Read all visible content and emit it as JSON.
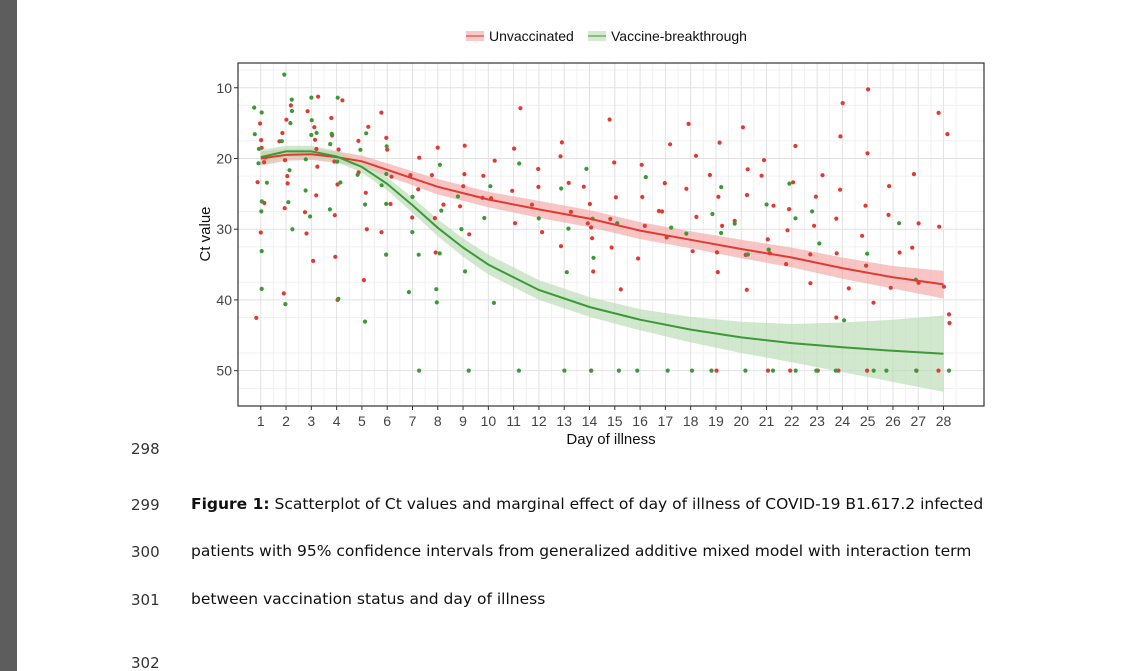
{
  "line_numbers": [
    "298",
    "299",
    "300",
    "301",
    "302"
  ],
  "caption": {
    "label": "Figure 1:",
    "line1": " Scatterplot of Ct values and marginal effect of day of illness of COVID-19 B1.617.2 infected",
    "line2": "patients with 95% confidence intervals from generalized additive mixed model with interaction term",
    "line3": "between vaccination status and day of illness"
  },
  "chart_data": {
    "type": "scatter",
    "title": "",
    "xlabel": "Day of illness",
    "ylabel": "Ct value",
    "x_ticks": [
      1,
      2,
      3,
      4,
      5,
      6,
      7,
      8,
      9,
      10,
      11,
      12,
      13,
      14,
      15,
      16,
      17,
      18,
      19,
      20,
      21,
      22,
      23,
      24,
      25,
      26,
      27,
      28
    ],
    "y_ticks": [
      10,
      20,
      30,
      40,
      50
    ],
    "xlim": [
      0.1,
      29.6
    ],
    "ylim": [
      55,
      6.5
    ],
    "y_axis_inverted": true,
    "grid": true,
    "legend_position": "top",
    "series": [
      {
        "name": "Unvaccinated",
        "color": "#e23a32",
        "band_color": "#f2a7a5",
        "fit": {
          "x": [
            1,
            2,
            3,
            4,
            5,
            6,
            7,
            8,
            10,
            12,
            14,
            16,
            18,
            20,
            22,
            24,
            26,
            28
          ],
          "y": [
            20,
            19.5,
            19.4,
            19.8,
            20.4,
            21.6,
            22.8,
            24,
            25.8,
            27.2,
            28.5,
            30.2,
            31.5,
            32.8,
            34,
            35.5,
            36.8,
            37.8
          ],
          "lower": [
            19,
            18.7,
            18.6,
            19,
            19.6,
            20.7,
            21.8,
            22.9,
            24.7,
            26,
            27.3,
            29,
            30.3,
            31.5,
            32.6,
            34,
            35.2,
            35.9
          ],
          "upper": [
            21,
            20.3,
            20.2,
            20.6,
            21.2,
            22.5,
            23.8,
            25.1,
            26.9,
            28.4,
            29.7,
            31.4,
            32.7,
            34.1,
            35.4,
            37,
            38.4,
            39.8
          ]
        },
        "points": [
          [
            1,
            43
          ],
          [
            1,
            21
          ],
          [
            1,
            18
          ],
          [
            1,
            15
          ],
          [
            1,
            23
          ],
          [
            1,
            20
          ],
          [
            1,
            26
          ],
          [
            1,
            31
          ],
          [
            1,
            17
          ],
          [
            2,
            14
          ],
          [
            2,
            18
          ],
          [
            2,
            22
          ],
          [
            2,
            24
          ],
          [
            2,
            27
          ],
          [
            2,
            12
          ],
          [
            2,
            39
          ],
          [
            2,
            20
          ],
          [
            2,
            16
          ],
          [
            3,
            11
          ],
          [
            3,
            15
          ],
          [
            3,
            19
          ],
          [
            3,
            25
          ],
          [
            3,
            28
          ],
          [
            3,
            35
          ],
          [
            3,
            21
          ],
          [
            3,
            13
          ],
          [
            3,
            17
          ],
          [
            3,
            31
          ],
          [
            4,
            12
          ],
          [
            4,
            17
          ],
          [
            4,
            21
          ],
          [
            4,
            24
          ],
          [
            4,
            28
          ],
          [
            4,
            34
          ],
          [
            4,
            40
          ],
          [
            4,
            14
          ],
          [
            4,
            19
          ],
          [
            5,
            15
          ],
          [
            5,
            18
          ],
          [
            5,
            22
          ],
          [
            5,
            25
          ],
          [
            5,
            30
          ],
          [
            5,
            37
          ],
          [
            6,
            14
          ],
          [
            6,
            19
          ],
          [
            6,
            23
          ],
          [
            6,
            27
          ],
          [
            6,
            31
          ],
          [
            6,
            17
          ],
          [
            7,
            20
          ],
          [
            7,
            24
          ],
          [
            7,
            28
          ],
          [
            7,
            22
          ],
          [
            8,
            19
          ],
          [
            8,
            22
          ],
          [
            8,
            26
          ],
          [
            8,
            29
          ],
          [
            8,
            33
          ],
          [
            9,
            18
          ],
          [
            9,
            22
          ],
          [
            9,
            24
          ],
          [
            9,
            27
          ],
          [
            9,
            31
          ],
          [
            10,
            20
          ],
          [
            10,
            23
          ],
          [
            10,
            26
          ],
          [
            10,
            25
          ],
          [
            11,
            13
          ],
          [
            11,
            19
          ],
          [
            11,
            24
          ],
          [
            11,
            29
          ],
          [
            12,
            21
          ],
          [
            12,
            24
          ],
          [
            12,
            27
          ],
          [
            12,
            30
          ],
          [
            13,
            18
          ],
          [
            13,
            20
          ],
          [
            13,
            24
          ],
          [
            13,
            28
          ],
          [
            13,
            33
          ],
          [
            14,
            24
          ],
          [
            14,
            27
          ],
          [
            14,
            29
          ],
          [
            14,
            31
          ],
          [
            14,
            36
          ],
          [
            14,
            50
          ],
          [
            14,
            30
          ],
          [
            15,
            15
          ],
          [
            15,
            20
          ],
          [
            15,
            25
          ],
          [
            15,
            28
          ],
          [
            15,
            32
          ],
          [
            15,
            38
          ],
          [
            16,
            21
          ],
          [
            16,
            26
          ],
          [
            16,
            30
          ],
          [
            16,
            34
          ],
          [
            17,
            18
          ],
          [
            17,
            24
          ],
          [
            17,
            27
          ],
          [
            17,
            31
          ],
          [
            17,
            28
          ],
          [
            18,
            15
          ],
          [
            18,
            20
          ],
          [
            18,
            24
          ],
          [
            18,
            28
          ],
          [
            18,
            33
          ],
          [
            19,
            18
          ],
          [
            19,
            22
          ],
          [
            19,
            26
          ],
          [
            19,
            30
          ],
          [
            19,
            33
          ],
          [
            19,
            50
          ],
          [
            19,
            36
          ],
          [
            20,
            15
          ],
          [
            20,
            21
          ],
          [
            20,
            25
          ],
          [
            20,
            29
          ],
          [
            20,
            34
          ],
          [
            20,
            38
          ],
          [
            21,
            20
          ],
          [
            21,
            23
          ],
          [
            21,
            27
          ],
          [
            21,
            31
          ],
          [
            21,
            33
          ],
          [
            21,
            50
          ],
          [
            22,
            18
          ],
          [
            22,
            23
          ],
          [
            22,
            27
          ],
          [
            22,
            30
          ],
          [
            22,
            35
          ],
          [
            22,
            50
          ],
          [
            23,
            22
          ],
          [
            23,
            26
          ],
          [
            23,
            30
          ],
          [
            23,
            33
          ],
          [
            23,
            38
          ],
          [
            23,
            50
          ],
          [
            24,
            12
          ],
          [
            24,
            17
          ],
          [
            24,
            24
          ],
          [
            24,
            29
          ],
          [
            24,
            33
          ],
          [
            24,
            38
          ],
          [
            24,
            42
          ],
          [
            24,
            50
          ],
          [
            25,
            10
          ],
          [
            25,
            19
          ],
          [
            25,
            27
          ],
          [
            25,
            31
          ],
          [
            25,
            35
          ],
          [
            25,
            40
          ],
          [
            25,
            50
          ],
          [
            26,
            24
          ],
          [
            26,
            28
          ],
          [
            26,
            33
          ],
          [
            26,
            38
          ],
          [
            27,
            22
          ],
          [
            27,
            29
          ],
          [
            27,
            33
          ],
          [
            27,
            37
          ],
          [
            27,
            50
          ],
          [
            28,
            14
          ],
          [
            28,
            17
          ],
          [
            28,
            30
          ],
          [
            28,
            38
          ],
          [
            28,
            42
          ],
          [
            28,
            43
          ],
          [
            28,
            50
          ]
        ]
      },
      {
        "name": "Vaccine-breakthrough",
        "color": "#3a9a35",
        "band_color": "#b9dcb3",
        "fit": {
          "x": [
            1,
            2,
            3,
            4,
            5,
            6,
            7,
            8,
            9,
            10,
            12,
            14,
            16,
            18,
            20,
            22,
            24,
            26,
            28
          ],
          "y": [
            19.8,
            19,
            19,
            19.7,
            21.2,
            23.6,
            26.6,
            29.8,
            32.6,
            35,
            38.6,
            41,
            42.8,
            44.2,
            45.3,
            46.1,
            46.7,
            47.2,
            47.6
          ],
          "lower": [
            18.8,
            18.2,
            18.2,
            18.9,
            20.4,
            22.7,
            25.5,
            28.6,
            31.3,
            33.6,
            37.2,
            39.6,
            41.3,
            42.4,
            43.1,
            43.4,
            43.2,
            42.8,
            42.2
          ],
          "upper": [
            20.8,
            19.8,
            19.8,
            20.5,
            22,
            24.5,
            27.7,
            31,
            33.9,
            36.4,
            40,
            42.4,
            44.3,
            46,
            47.5,
            48.8,
            50.2,
            51.6,
            53
          ]
        },
        "points": [
          [
            1,
            13
          ],
          [
            1,
            16
          ],
          [
            1,
            19
          ],
          [
            1,
            21
          ],
          [
            1,
            24
          ],
          [
            1,
            28
          ],
          [
            1,
            33
          ],
          [
            1,
            38
          ],
          [
            1,
            26
          ],
          [
            1,
            14
          ],
          [
            2,
            8
          ],
          [
            2,
            12
          ],
          [
            2,
            15
          ],
          [
            2,
            18
          ],
          [
            2,
            22
          ],
          [
            2,
            26
          ],
          [
            2,
            30
          ],
          [
            2,
            40
          ],
          [
            2,
            13
          ],
          [
            3,
            11
          ],
          [
            3,
            14
          ],
          [
            3,
            17
          ],
          [
            3,
            20
          ],
          [
            3,
            24
          ],
          [
            3,
            28
          ],
          [
            3,
            16
          ],
          [
            4,
            12
          ],
          [
            4,
            16
          ],
          [
            4,
            20
          ],
          [
            4,
            23
          ],
          [
            4,
            27
          ],
          [
            4,
            40
          ],
          [
            4,
            18
          ],
          [
            5,
            19
          ],
          [
            5,
            22
          ],
          [
            5,
            27
          ],
          [
            5,
            43
          ],
          [
            5,
            17
          ],
          [
            6,
            18
          ],
          [
            6,
            22
          ],
          [
            6,
            27
          ],
          [
            6,
            33
          ],
          [
            6,
            24
          ],
          [
            7,
            25
          ],
          [
            7,
            30
          ],
          [
            7,
            34
          ],
          [
            7,
            39
          ],
          [
            7,
            50
          ],
          [
            8,
            21
          ],
          [
            8,
            27
          ],
          [
            8,
            33
          ],
          [
            8,
            38
          ],
          [
            8,
            40
          ],
          [
            9,
            25
          ],
          [
            9,
            30
          ],
          [
            9,
            36
          ],
          [
            9,
            50
          ],
          [
            10,
            24
          ],
          [
            10,
            29
          ],
          [
            10,
            40
          ],
          [
            11,
            21
          ],
          [
            11,
            50
          ],
          [
            12,
            28
          ],
          [
            13,
            24
          ],
          [
            13,
            30
          ],
          [
            13,
            36
          ],
          [
            13,
            50
          ],
          [
            14,
            22
          ],
          [
            14,
            28
          ],
          [
            14,
            34
          ],
          [
            14,
            50
          ],
          [
            15,
            29
          ],
          [
            15,
            50
          ],
          [
            16,
            23
          ],
          [
            16,
            50
          ],
          [
            17,
            30
          ],
          [
            17,
            50
          ],
          [
            18,
            31
          ],
          [
            18,
            50
          ],
          [
            19,
            24
          ],
          [
            19,
            28
          ],
          [
            19,
            31
          ],
          [
            19,
            50
          ],
          [
            20,
            29
          ],
          [
            20,
            34
          ],
          [
            20,
            50
          ],
          [
            21,
            26
          ],
          [
            21,
            33
          ],
          [
            21,
            50
          ],
          [
            22,
            24
          ],
          [
            22,
            28
          ],
          [
            22,
            50
          ],
          [
            23,
            27
          ],
          [
            23,
            32
          ],
          [
            23,
            50
          ],
          [
            24,
            43
          ],
          [
            24,
            50
          ],
          [
            25,
            34
          ],
          [
            25,
            50
          ],
          [
            26,
            29
          ],
          [
            26,
            50
          ],
          [
            27,
            37
          ],
          [
            27,
            50
          ],
          [
            28,
            50
          ]
        ]
      }
    ]
  }
}
